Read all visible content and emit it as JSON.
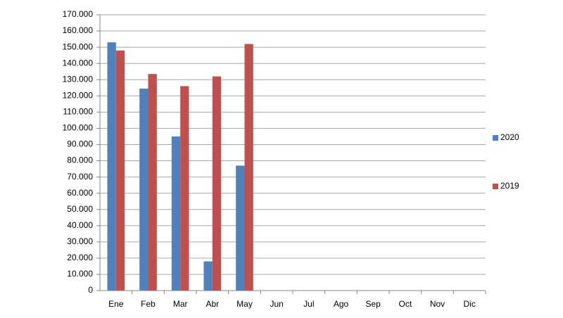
{
  "chart_data": {
    "type": "bar",
    "categories": [
      "Ene",
      "Feb",
      "Mar",
      "Abr",
      "May",
      "Jun",
      "Jul",
      "Ago",
      "Sep",
      "Oct",
      "Nov",
      "Dic"
    ],
    "series": [
      {
        "name": "2020",
        "color": "#4f81bd",
        "values": [
          153000,
          124500,
          95000,
          18000,
          77000,
          null,
          null,
          null,
          null,
          null,
          null,
          null
        ]
      },
      {
        "name": "2019",
        "color": "#c0504d",
        "values": [
          148000,
          133500,
          126000,
          132000,
          152000,
          null,
          null,
          null,
          null,
          null,
          null,
          null
        ]
      }
    ],
    "ylim": [
      0,
      170000
    ],
    "yticks": [
      0,
      {
        "value": 10000,
        "label": "10.000"
      },
      {
        "value": 20000,
        "label": "20.000"
      },
      {
        "value": 30000,
        "label": "30.000"
      },
      {
        "value": 40000,
        "label": "40.000"
      },
      {
        "value": 50000,
        "label": "50.000"
      },
      {
        "value": 60000,
        "label": "60.000"
      },
      {
        "value": 70000,
        "label": "70.000"
      },
      {
        "value": 80000,
        "label": "80.000"
      },
      {
        "value": 90000,
        "label": "90.000"
      },
      {
        "value": 100000,
        "label": "100.000"
      },
      {
        "value": 110000,
        "label": "110.000"
      },
      {
        "value": 120000,
        "label": "120.000"
      },
      {
        "value": 130000,
        "label": "130.000"
      },
      {
        "value": 140000,
        "label": "140.000"
      },
      {
        "value": 150000,
        "label": "150.000"
      },
      {
        "value": 160000,
        "label": "160.000"
      },
      {
        "value": 170000,
        "label": "170.000"
      }
    ],
    "grid": true,
    "legend": "right"
  }
}
